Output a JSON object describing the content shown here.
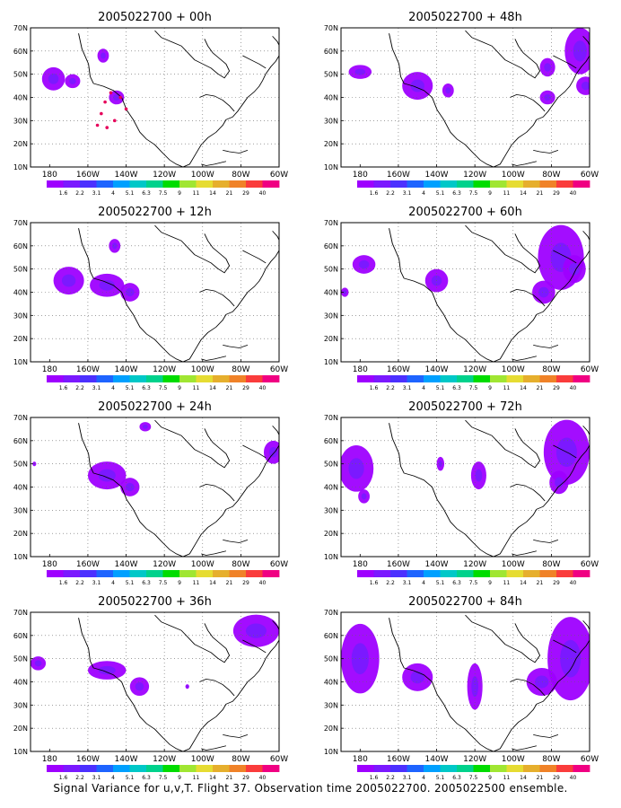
{
  "axes": {
    "y_ticks": [
      "70N",
      "60N",
      "50N",
      "40N",
      "30N",
      "20N",
      "10N"
    ],
    "x_ticks": [
      "180",
      "160W",
      "140W",
      "120W",
      "100W",
      "80W",
      "60W"
    ],
    "lon_range": [
      -190,
      -60
    ],
    "lat_range": [
      10,
      70
    ]
  },
  "colorbar": {
    "labels": [
      "1.6",
      "2.2",
      "3.1",
      "4",
      "5.1",
      "6.3",
      "7.5",
      "9",
      "11",
      "14",
      "21",
      "29",
      "40"
    ],
    "colors": [
      "#9e00ff",
      "#7b19ff",
      "#4c30ff",
      "#1e64ff",
      "#00a0ff",
      "#00c8c8",
      "#00d28c",
      "#00dc00",
      "#a0e632",
      "#e6dc32",
      "#e6af2d",
      "#f08228",
      "#fa3c3c",
      "#f00082"
    ]
  },
  "panels": [
    {
      "title": "2005022700 + 00h"
    },
    {
      "title": "2005022700 + 48h"
    },
    {
      "title": "2005022700 + 12h"
    },
    {
      "title": "2005022700 + 60h"
    },
    {
      "title": "2005022700 + 24h"
    },
    {
      "title": "2005022700 + 72h"
    },
    {
      "title": "2005022700 + 36h"
    },
    {
      "title": "2005022700 + 84h"
    }
  ],
  "caption": "Signal Variance for u,v,T. Flight 37. Observation time 2005022700. 2005022500 ensemble."
}
